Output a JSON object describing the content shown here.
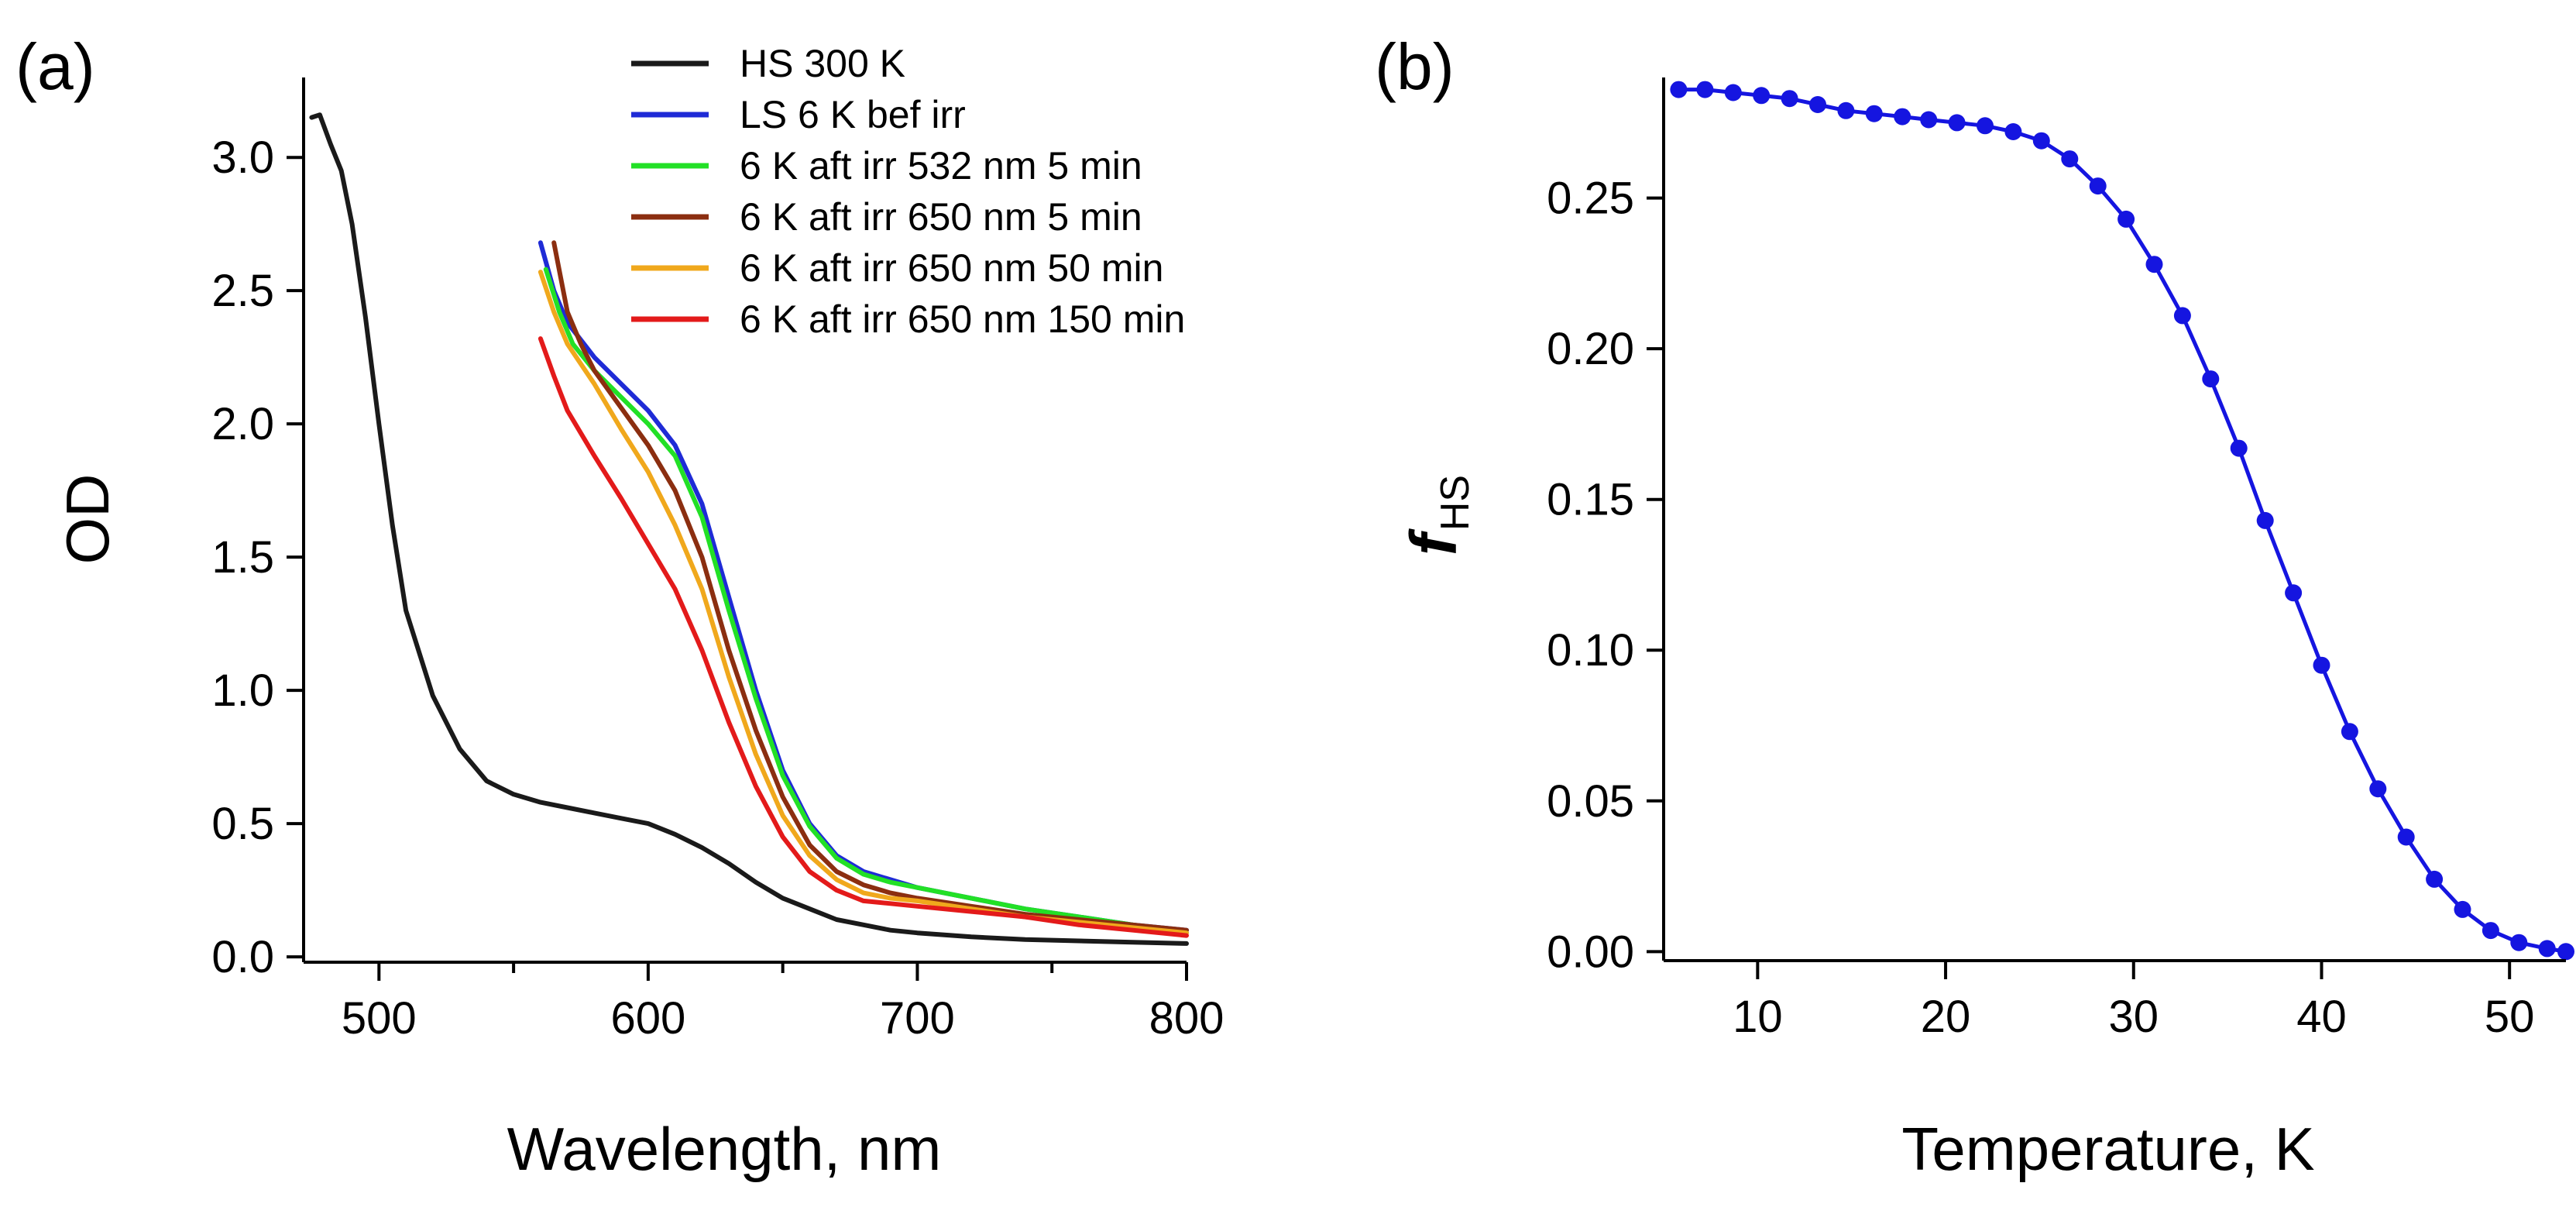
{
  "chart_data": [
    {
      "panel_label": "(a)",
      "type": "line",
      "xlabel": "Wavelength, nm",
      "ylabel": "OD",
      "xlim": [
        472,
        800
      ],
      "ylim": [
        -0.02,
        3.3
      ],
      "xticks": [
        500,
        600,
        700,
        800
      ],
      "xtick_labels": [
        "500",
        "600",
        "700",
        "800"
      ],
      "xminor": [
        550,
        650,
        750
      ],
      "yticks": [
        0,
        0.5,
        1.0,
        1.5,
        2.0,
        2.5,
        3.0
      ],
      "ytick_labels": [
        "0.0",
        "0.5",
        "1.0",
        "1.5",
        "2.0",
        "2.5",
        "3.0"
      ],
      "legend_position": "top-right",
      "series": [
        {
          "name": "HS 300 K",
          "color": "#1a1a1a",
          "x": [
            475,
            478,
            482,
            486,
            490,
            495,
            500,
            505,
            510,
            520,
            530,
            540,
            550,
            560,
            570,
            580,
            590,
            600,
            610,
            620,
            630,
            640,
            650,
            660,
            670,
            680,
            690,
            700,
            720,
            740,
            760,
            780,
            800
          ],
          "y": [
            3.15,
            3.16,
            3.05,
            2.95,
            2.75,
            2.4,
            2.0,
            1.62,
            1.3,
            0.98,
            0.78,
            0.66,
            0.61,
            0.58,
            0.56,
            0.54,
            0.52,
            0.5,
            0.46,
            0.41,
            0.35,
            0.28,
            0.22,
            0.18,
            0.14,
            0.12,
            0.1,
            0.09,
            0.075,
            0.065,
            0.06,
            0.055,
            0.05
          ]
        },
        {
          "name": "LS 6 K bef irr",
          "color": "#1f2bd6",
          "x": [
            560,
            565,
            570,
            580,
            590,
            600,
            610,
            620,
            630,
            640,
            650,
            660,
            670,
            680,
            690,
            700,
            720,
            740,
            760,
            780,
            800
          ],
          "y": [
            2.68,
            2.5,
            2.38,
            2.25,
            2.15,
            2.05,
            1.92,
            1.7,
            1.35,
            1.0,
            0.7,
            0.5,
            0.38,
            0.32,
            0.29,
            0.26,
            0.22,
            0.18,
            0.15,
            0.12,
            0.1
          ]
        },
        {
          "name": "6 K aft irr 532 nm 5 min",
          "color": "#22e026",
          "x": [
            562,
            567,
            572,
            580,
            590,
            600,
            610,
            620,
            630,
            640,
            650,
            660,
            670,
            680,
            690,
            700,
            720,
            740,
            760,
            780,
            800
          ],
          "y": [
            2.58,
            2.42,
            2.3,
            2.2,
            2.1,
            2.0,
            1.88,
            1.65,
            1.3,
            0.97,
            0.68,
            0.49,
            0.37,
            0.31,
            0.28,
            0.26,
            0.22,
            0.18,
            0.15,
            0.12,
            0.09
          ]
        },
        {
          "name": "6 K aft irr 650 nm 5 min",
          "color": "#8b2e10",
          "x": [
            565,
            570,
            575,
            580,
            590,
            600,
            610,
            620,
            630,
            640,
            650,
            660,
            670,
            680,
            690,
            700,
            720,
            740,
            760,
            780,
            800
          ],
          "y": [
            2.68,
            2.42,
            2.3,
            2.2,
            2.06,
            1.92,
            1.75,
            1.5,
            1.15,
            0.85,
            0.6,
            0.42,
            0.32,
            0.27,
            0.24,
            0.22,
            0.19,
            0.16,
            0.14,
            0.12,
            0.1
          ]
        },
        {
          "name": "6 K aft irr 650 nm 50 min",
          "color": "#f0a81c",
          "x": [
            560,
            565,
            570,
            580,
            590,
            600,
            610,
            620,
            630,
            640,
            650,
            660,
            670,
            680,
            690,
            700,
            720,
            740,
            760,
            780,
            800
          ],
          "y": [
            2.57,
            2.42,
            2.3,
            2.15,
            1.98,
            1.82,
            1.62,
            1.38,
            1.05,
            0.76,
            0.53,
            0.38,
            0.29,
            0.24,
            0.22,
            0.21,
            0.18,
            0.15,
            0.13,
            0.11,
            0.09
          ]
        },
        {
          "name": "6 K aft irr 650 nm 150 min",
          "color": "#e31a1a",
          "x": [
            560,
            565,
            570,
            580,
            590,
            600,
            610,
            620,
            630,
            640,
            650,
            660,
            670,
            680,
            690,
            700,
            720,
            740,
            760,
            780,
            800
          ],
          "y": [
            2.32,
            2.18,
            2.05,
            1.88,
            1.72,
            1.55,
            1.38,
            1.15,
            0.88,
            0.64,
            0.45,
            0.32,
            0.25,
            0.21,
            0.2,
            0.19,
            0.17,
            0.15,
            0.12,
            0.1,
            0.08
          ]
        }
      ]
    },
    {
      "panel_label": "(b)",
      "type": "line",
      "xlabel": "Temperature, K",
      "ylabel_main": "f",
      "ylabel_sub": "HS",
      "xlim": [
        5,
        53
      ],
      "ylim": [
        -0.003,
        0.29
      ],
      "xticks": [
        10,
        20,
        30,
        40,
        50
      ],
      "xtick_labels": [
        "10",
        "20",
        "30",
        "40",
        "50"
      ],
      "yticks": [
        0,
        0.05,
        0.1,
        0.15,
        0.2,
        0.25
      ],
      "ytick_labels": [
        "0.00",
        "0.05",
        "0.10",
        "0.15",
        "0.20",
        "0.25"
      ],
      "series": [
        {
          "name": "fHS",
          "color": "#1515e0",
          "x": [
            5.8,
            7.2,
            8.7,
            10.2,
            11.7,
            13.2,
            14.7,
            16.2,
            17.7,
            19.1,
            20.6,
            22.1,
            23.6,
            25.1,
            26.6,
            28.1,
            29.6,
            31.1,
            32.6,
            34.1,
            35.6,
            37.0,
            38.5,
            40.0,
            41.5,
            43.0,
            44.5,
            46.0,
            47.5,
            49.0,
            50.5,
            52.0,
            53.0
          ],
          "y": [
            0.286,
            0.286,
            0.285,
            0.284,
            0.283,
            0.281,
            0.279,
            0.278,
            0.277,
            0.276,
            0.275,
            0.274,
            0.272,
            0.269,
            0.263,
            0.254,
            0.243,
            0.228,
            0.211,
            0.19,
            0.167,
            0.143,
            0.119,
            0.095,
            0.073,
            0.054,
            0.038,
            0.024,
            0.014,
            0.007,
            0.003,
            0.001,
            0.0
          ]
        }
      ]
    }
  ]
}
